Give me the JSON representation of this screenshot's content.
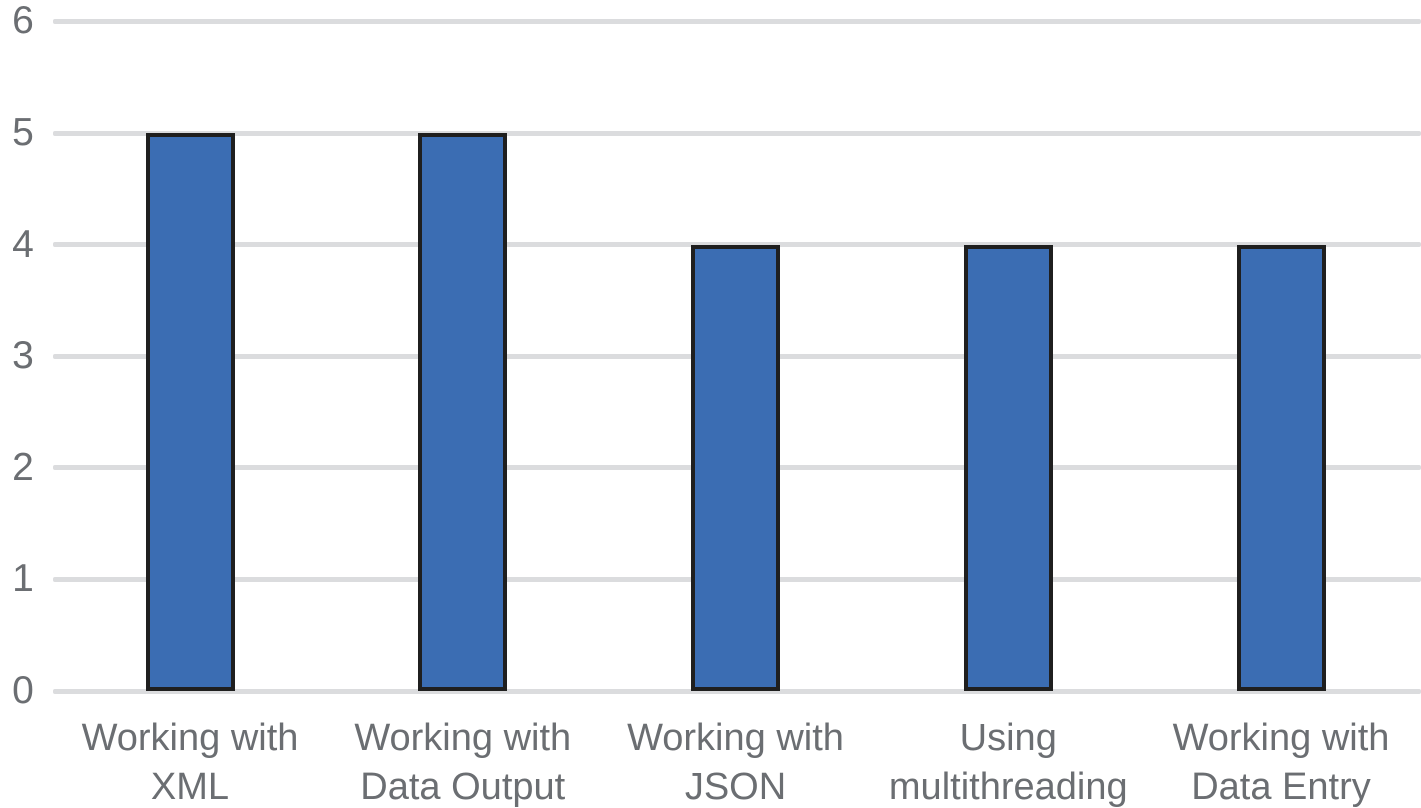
{
  "chart_data": {
    "type": "bar",
    "title": "",
    "xlabel": "",
    "ylabel": "",
    "categories": [
      "Working with XML",
      "Working with Data Output",
      "Working with JSON",
      "Using multithreading",
      "Working with Data Entry"
    ],
    "category_lines": [
      [
        "Working with",
        "XML"
      ],
      [
        "Working with",
        "Data Output"
      ],
      [
        "Working with",
        "JSON"
      ],
      [
        "Using",
        "multithreading"
      ],
      [
        "Working with",
        "Data Entry"
      ]
    ],
    "values": [
      5,
      5,
      4,
      4,
      4
    ],
    "ylim": [
      0,
      6
    ],
    "yticks": [
      0,
      1,
      2,
      3,
      4,
      5,
      6
    ],
    "grid": true,
    "legend": false,
    "colors": {
      "bar_fill": "#3B6DB3",
      "bar_border": "#1F1F1F",
      "gridline": "#DBDCDE",
      "tick_label": "#6B6E72",
      "background": "#FFFFFF"
    }
  }
}
